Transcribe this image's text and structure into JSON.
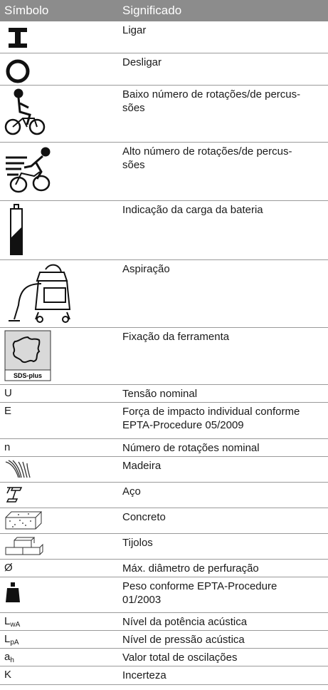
{
  "table": {
    "header": [
      "Símbolo",
      "Significado"
    ],
    "rows": [
      {
        "meaning": "Ligar"
      },
      {
        "meaning": "Desligar"
      },
      {
        "meaning": "Baixo número de rotações/de percus-\nsões"
      },
      {
        "meaning": "Alto número de rotações/de percus-\nsões"
      },
      {
        "meaning": "Indicação da carga da bateria"
      },
      {
        "meaning": "Aspiração"
      },
      {
        "symbol_label": "SDS-plus",
        "meaning": "Fixação da ferramenta"
      },
      {
        "symbol": "U",
        "meaning": "Tensão nominal"
      },
      {
        "symbol": "E",
        "meaning": "Força de impacto individual conforme\nEPTA-Procedure 05/2009"
      },
      {
        "symbol": "n",
        "meaning": "Número de rotações nominal"
      },
      {
        "meaning": "Madeira"
      },
      {
        "meaning": "Aço"
      },
      {
        "meaning": "Concreto"
      },
      {
        "meaning": "Tijolos"
      },
      {
        "symbol": "Ø",
        "meaning": "Máx. diâmetro de perfuração"
      },
      {
        "meaning": "Peso conforme EPTA-Procedure\n01/2003"
      },
      {
        "symbol": {
          "main": "L",
          "sub": "wA"
        },
        "meaning": "Nível da potência acústica"
      },
      {
        "symbol": {
          "main": "L",
          "sub": "pA"
        },
        "meaning": "Nível de pressão acústica"
      },
      {
        "symbol": {
          "main": "a",
          "sub": "h"
        },
        "meaning": "Valor total de oscilações"
      },
      {
        "symbol": "K",
        "meaning": "Incerteza"
      }
    ]
  }
}
